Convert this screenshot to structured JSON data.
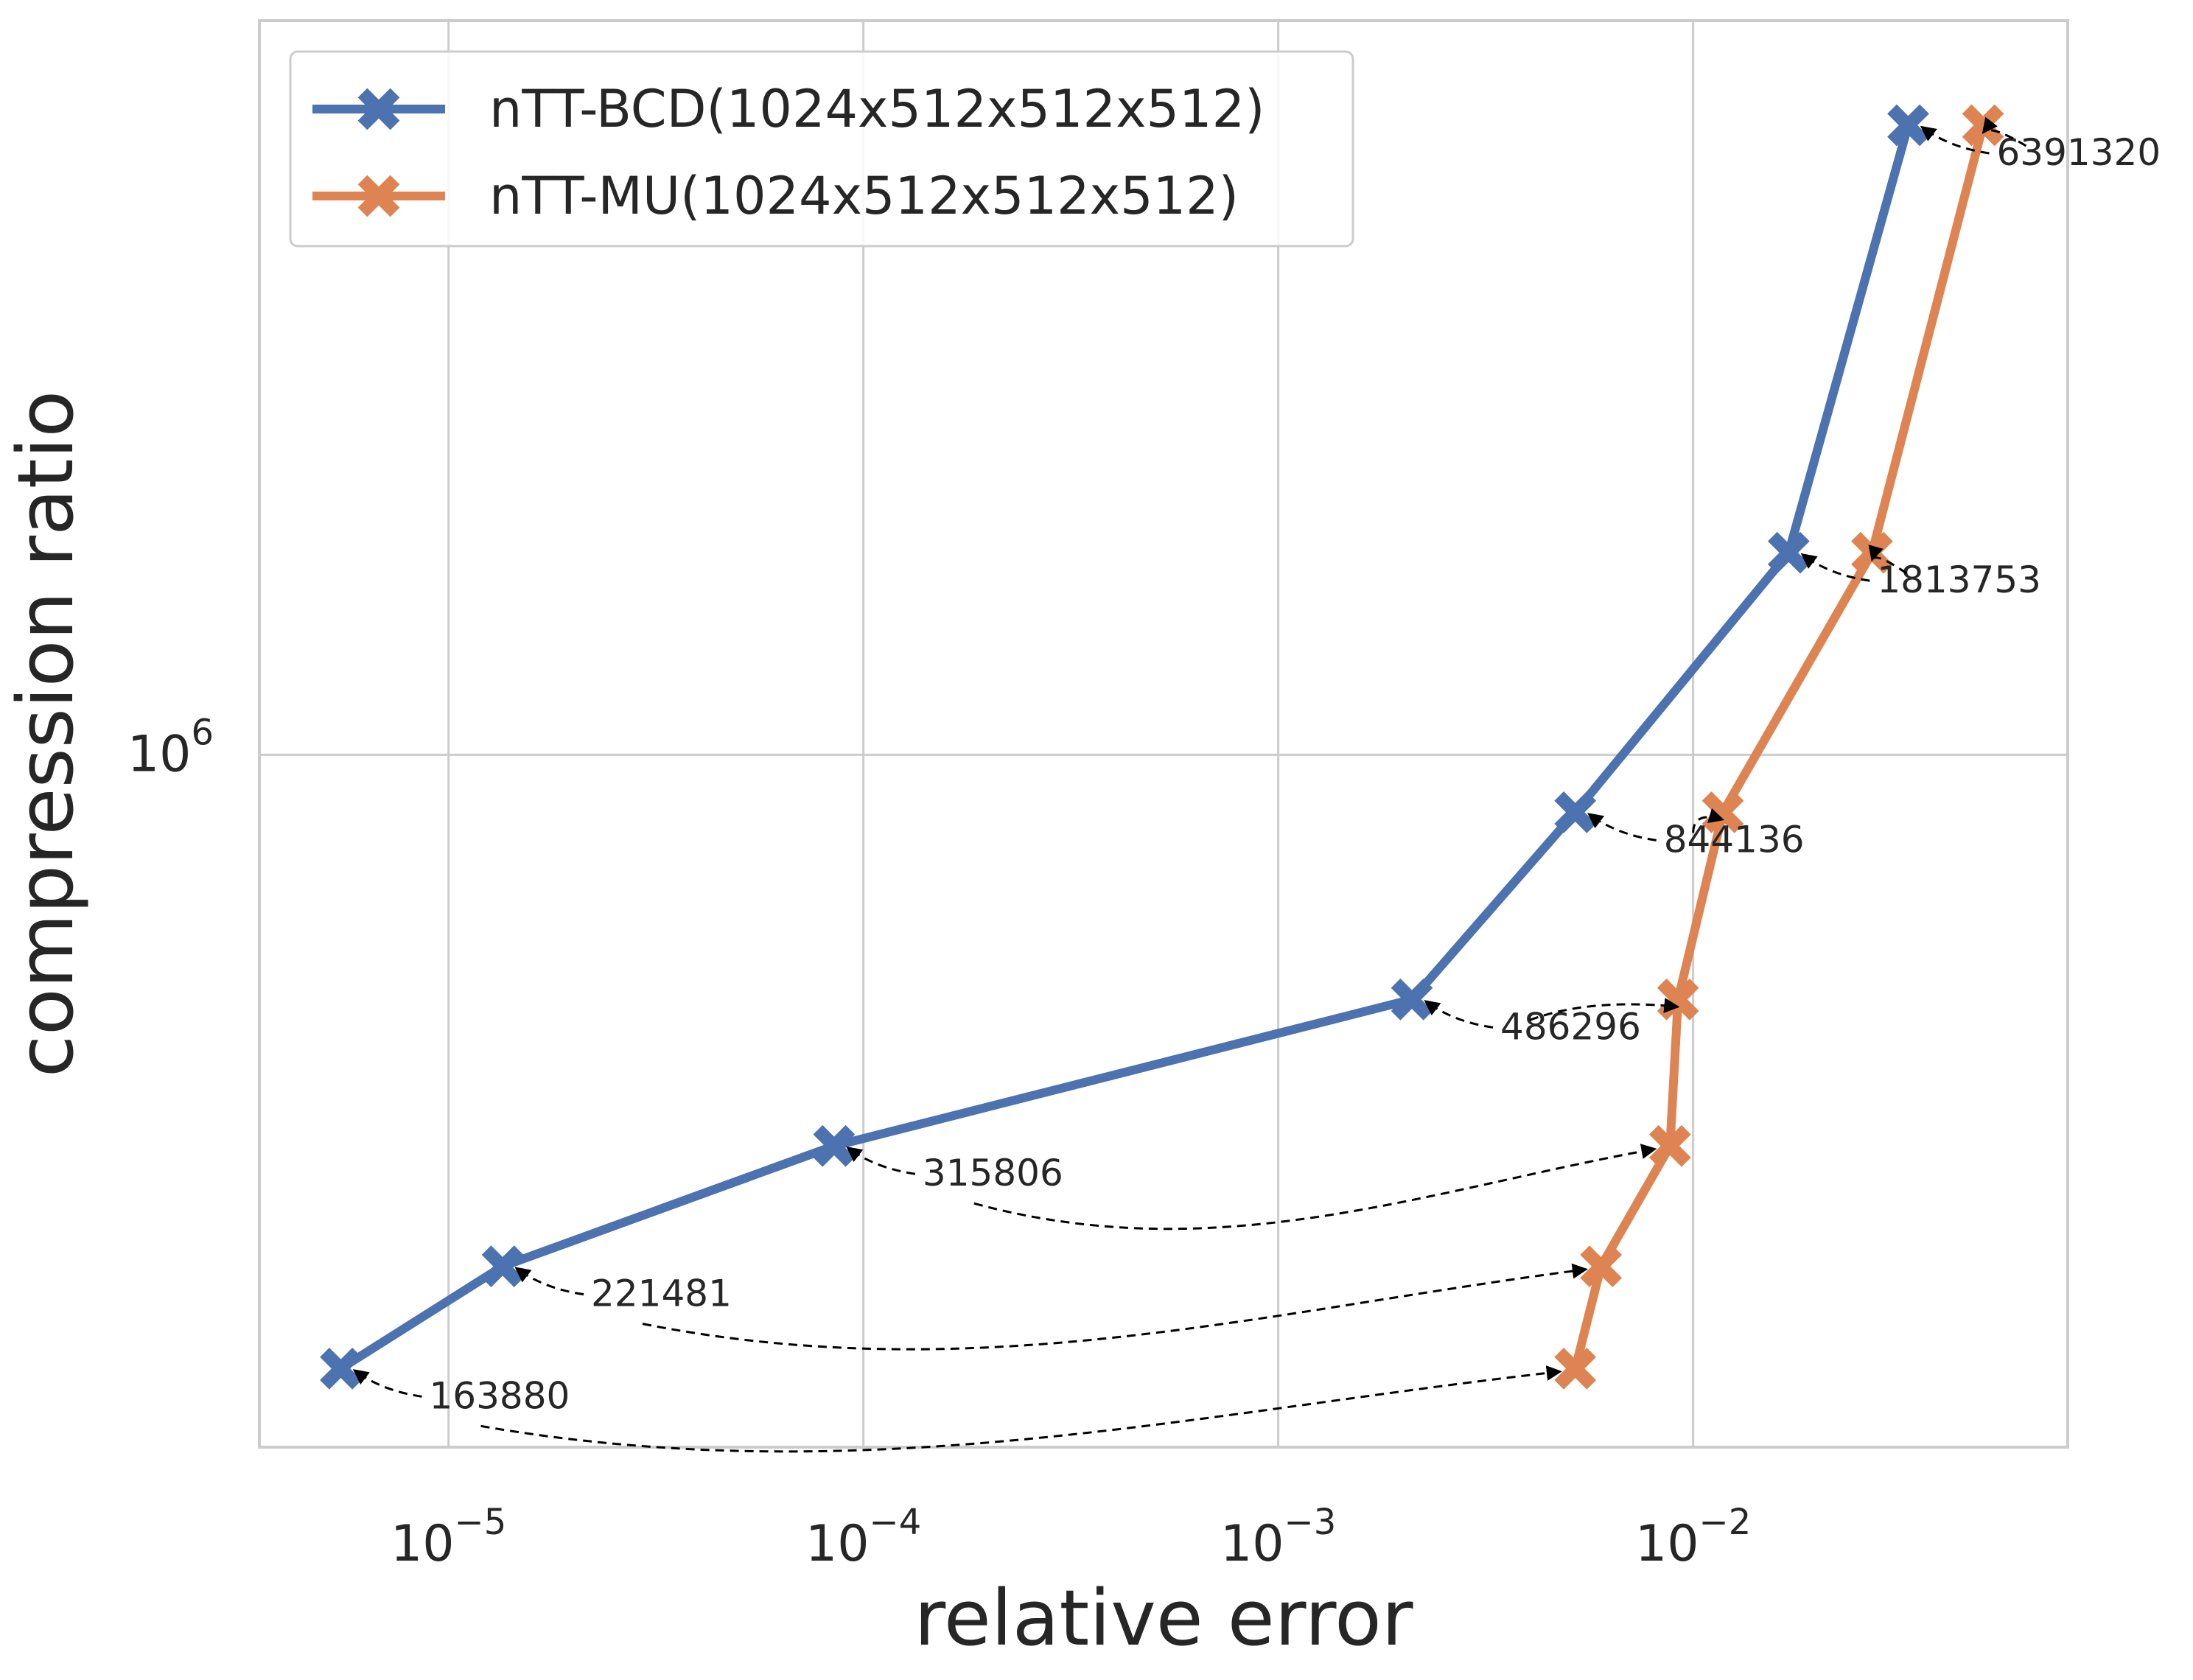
{
  "chart_data": {
    "type": "line",
    "xscale": "log",
    "yscale": "log",
    "xlabel": "relative error",
    "ylabel": "compression ratio",
    "xlim": [
      3.5e-06,
      0.08
    ],
    "ylim": [
      130000,
      8700000
    ],
    "xticks": [
      {
        "value": 1e-05,
        "base": "10",
        "exp": "−5"
      },
      {
        "value": 0.0001,
        "base": "10",
        "exp": "−4"
      },
      {
        "value": 0.001,
        "base": "10",
        "exp": "−3"
      },
      {
        "value": 0.01,
        "base": "10",
        "exp": "−2"
      }
    ],
    "yticks": [
      {
        "value": 1000000,
        "base": "10",
        "exp": "6"
      }
    ],
    "grid": true,
    "legend_position": "top-left",
    "series": [
      {
        "name": "nTT-BCD(1024x512x512x512)",
        "color": "#4c72b0",
        "marker": "X",
        "x": [
          5.5e-06,
          1.35e-05,
          8.5e-05,
          0.0021,
          0.0052,
          0.017,
          0.033
        ],
        "y": [
          163880,
          221481,
          315806,
          486296,
          844136,
          1813753,
          6391320
        ]
      },
      {
        "name": "nTT-MU(1024x512x512x512)",
        "color": "#dd8452",
        "marker": "X",
        "x": [
          0.0052,
          0.006,
          0.0088,
          0.0092,
          0.0118,
          0.027,
          0.05
        ],
        "y": [
          163880,
          221481,
          315806,
          486296,
          844136,
          1813753,
          6391320
        ]
      }
    ],
    "annotations": [
      {
        "text": "163880",
        "y": 163880
      },
      {
        "text": "221481",
        "y": 221481
      },
      {
        "text": "315806",
        "y": 315806
      },
      {
        "text": "486296",
        "y": 486296
      },
      {
        "text": "844136",
        "y": 844136
      },
      {
        "text": "1813753",
        "y": 1813753
      },
      {
        "text": "6391320",
        "y": 6391320
      }
    ]
  }
}
